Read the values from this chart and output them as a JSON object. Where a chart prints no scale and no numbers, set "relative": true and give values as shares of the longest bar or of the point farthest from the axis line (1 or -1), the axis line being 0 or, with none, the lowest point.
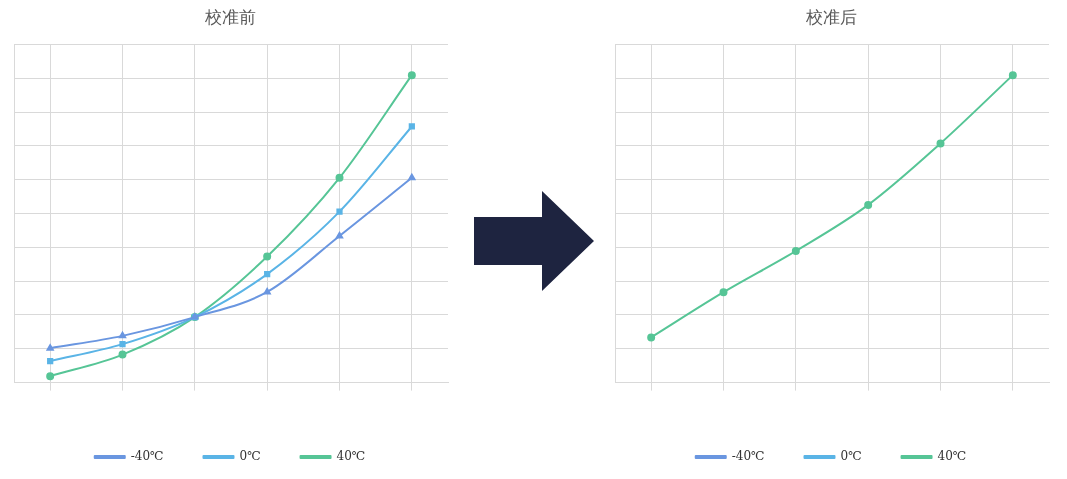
{
  "chart_data": [
    {
      "type": "line",
      "title": "校准前",
      "categories": [
        null,
        null,
        null,
        null,
        null,
        null
      ],
      "relative": true,
      "grid": true,
      "legend": "bottom",
      "series": [
        {
          "name": "-40℃",
          "color": "#6a96e0",
          "marker": "triangle",
          "values": [
            0.112,
            0.152,
            0.213,
            0.295,
            0.477,
            0.666
          ]
        },
        {
          "name": "0℃",
          "color": "#5ab4e6",
          "marker": "square",
          "values": [
            0.07,
            0.125,
            0.213,
            0.353,
            0.556,
            0.833
          ]
        },
        {
          "name": "40℃",
          "color": "#56c596",
          "marker": "circle",
          "values": [
            0.021,
            0.091,
            0.213,
            0.41,
            0.666,
            1
          ]
        }
      ]
    },
    {
      "type": "line",
      "title": "校准后",
      "categories": [
        null,
        null,
        null,
        null,
        null,
        null
      ],
      "relative": true,
      "grid": true,
      "legend": "bottom",
      "series": [
        {
          "name": "-40℃",
          "color": "#6a96e0",
          "marker": "square",
          "values": [
            null,
            null,
            null,
            null,
            null,
            null
          ]
        },
        {
          "name": "0℃",
          "color": "#5ab4e6",
          "marker": "square",
          "values": [
            null,
            null,
            null,
            null,
            null,
            null
          ]
        },
        {
          "name": "40℃",
          "color": "#56c596",
          "marker": "circle",
          "values": [
            0.147,
            0.294,
            0.428,
            0.578,
            0.778,
            1
          ]
        }
      ]
    }
  ]
}
